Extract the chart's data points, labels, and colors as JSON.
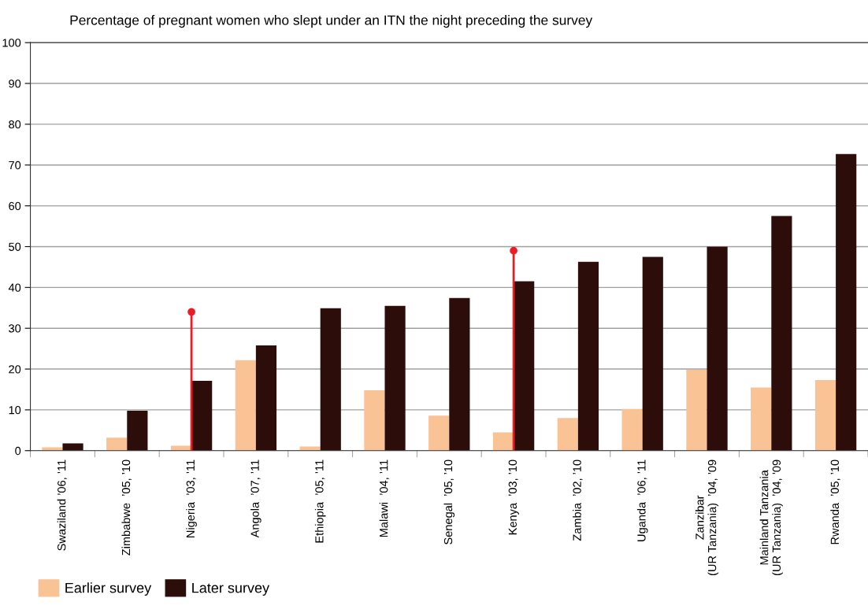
{
  "chart_data": {
    "type": "bar",
    "title": "Percentage of pregnant women who slept under an ITN the night preceding the survey",
    "categories": [
      "Swaziland ’06, ’11",
      "Zimbabwe  ’05, ’10",
      "Nigeria  ’03, ’11",
      "Angola  ’07, ’11",
      "Ethiopia  ’05, ’11",
      "Malawi  ’04, ’11",
      "Senegal  ’05, ’10",
      "Kenya  ’03, ’10",
      "Zambia  ’02, ’10",
      "Uganda  ’06, ’11",
      "Zanzibar\n(UR Tanzania)  ’04, ’09",
      "Mainland Tanzania\n(UR Tanzania)  ’04, ’09",
      "Rwanda  ’05, ’10"
    ],
    "series": [
      {
        "name": "Earlier survey",
        "color": "#f9c396",
        "values": [
          0.8,
          3.2,
          1.2,
          22.2,
          1.0,
          14.8,
          8.6,
          4.5,
          8.0,
          10.2,
          19.8,
          15.5,
          17.3
        ]
      },
      {
        "name": "Later survey",
        "color": "#2c0d0a",
        "values": [
          1.8,
          9.8,
          17.1,
          25.8,
          34.9,
          35.5,
          37.4,
          41.5,
          46.3,
          47.5,
          50.0,
          57.5,
          72.7
        ]
      },
      {
        "type": "lollipop",
        "color": "#ed1c24",
        "values": [
          null,
          null,
          34,
          null,
          null,
          null,
          null,
          49,
          null,
          null,
          null,
          null,
          null
        ]
      }
    ],
    "ylim": [
      0,
      100
    ],
    "yticks": [
      0,
      10,
      20,
      30,
      40,
      50,
      60,
      70,
      80,
      90,
      100
    ],
    "grid": "y",
    "legend": "bottom left"
  }
}
